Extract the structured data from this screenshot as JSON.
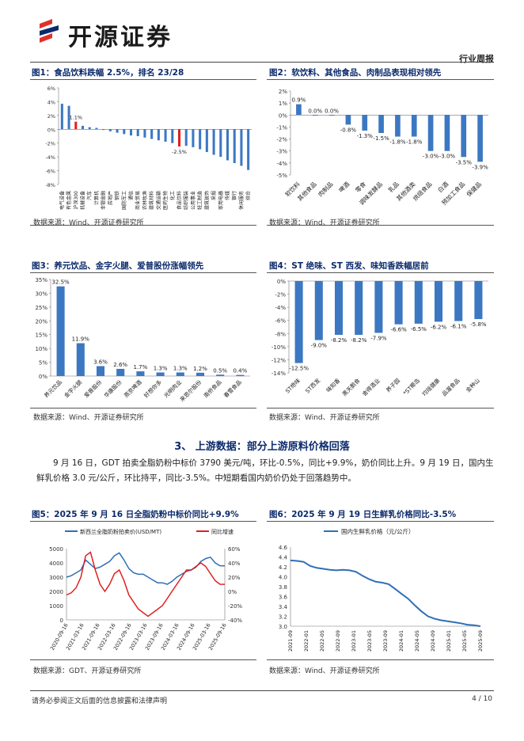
{
  "header": {
    "company": "开源证券",
    "report_type": "行业周报"
  },
  "figures": [
    {
      "title": "图1：食品饮料跌幅 2.5%，排名 23/28",
      "source": "数据来源：Wind、开源证券研究所",
      "chart_data": {
        "type": "bar",
        "categories": [
          "电气设备",
          "有色金属",
          "沪深300",
          "机械设备",
          "汽车",
          "计算机",
          "非银金融",
          "房地产",
          "钢铁",
          "国防军工",
          "通信",
          "商业贸易",
          "农林牧渔",
          "建筑材料",
          "交通运输",
          "医药生物",
          "化工",
          "食品饮料",
          "纺织服装",
          "公用事业",
          "轻工制造",
          "建筑装饰",
          "采掘",
          "家用电器",
          "传媒",
          "银行",
          "休闲服务",
          "综合"
        ],
        "values": [
          3.7,
          3.4,
          1.1,
          0.5,
          0.3,
          0.2,
          -0.1,
          -0.3,
          -0.5,
          -0.7,
          -0.9,
          -1.0,
          -1.2,
          -1.4,
          -1.6,
          -1.8,
          -2.0,
          -2.5,
          -2.4,
          -2.6,
          -2.9,
          -3.3,
          -3.7,
          -4.0,
          -4.5,
          -4.9,
          -5.3,
          -5.9
        ],
        "highlight": {
          "沪深300": "#e02020",
          "食品饮料": "#e02020"
        },
        "data_labels": {
          "沪深300": "1.1%",
          "食品饮料": "-2.5%"
        },
        "ylim": [
          -8,
          6
        ],
        "yticks": [
          "6%",
          "4%",
          "2%",
          "0%",
          "-2%",
          "-4%",
          "-6%",
          "-8%"
        ]
      }
    },
    {
      "title": "图2：软饮料、其他食品、肉制品表现相对领先",
      "source": "数据来源：Wind、开源证券研究所",
      "chart_data": {
        "type": "bar",
        "categories": [
          "软饮料",
          "其他食品",
          "肉制品",
          "啤酒",
          "零食",
          "调味发酵品",
          "乳品",
          "其他酒类",
          "烘焙食品",
          "白酒",
          "预加工食品",
          "保健品"
        ],
        "values": [
          0.9,
          0.0,
          0.0,
          -0.8,
          -1.3,
          -1.5,
          -1.8,
          -1.8,
          -3.0,
          -3.0,
          -3.5,
          -3.9
        ],
        "labels": [
          "0.9%",
          "0.0%",
          "0.0%",
          "-0.8%",
          "-1.3%",
          "-1.5%",
          "-1.8%",
          "-1.8%",
          "-3.0%",
          "-3.0%",
          "-3.5%",
          "-3.9%"
        ],
        "ylim": [
          -5,
          2
        ],
        "yticks": [
          "2%",
          "1%",
          "0%",
          "-1%",
          "-2%",
          "-3%",
          "-4%",
          "-5%"
        ]
      }
    },
    {
      "title": "图3：养元饮品、金字火腿、爱普股份涨幅领先",
      "source": "数据来源：Wind、开源证券研究所",
      "chart_data": {
        "type": "bar",
        "categories": [
          "养元饮品",
          "金字火腿",
          "爱普股份",
          "华康股份",
          "燕京啤酒",
          "好想你多",
          "光明肉业",
          "来思尔股份",
          "南侨食品",
          "春雪食品"
        ],
        "values": [
          32.5,
          11.9,
          3.6,
          2.6,
          1.7,
          1.3,
          1.3,
          1.2,
          0.5,
          0.4
        ],
        "labels": [
          "32.5%",
          "11.9%",
          "3.6%",
          "2.6%",
          "1.7%",
          "1.3%",
          "1.3%",
          "1.2%",
          "0.5%",
          "0.4%"
        ],
        "ylim": [
          0,
          35
        ],
        "yticks": [
          "35%",
          "30%",
          "25%",
          "20%",
          "15%",
          "10%",
          "5%",
          "0%"
        ]
      }
    },
    {
      "title": "图4：ST 绝味、ST 西发、味知香跌幅居前",
      "source": "数据来源：Wind、开源证券研究所",
      "chart_data": {
        "type": "bar",
        "categories": [
          "ST绝味",
          "ST西发",
          "味知香",
          "黑天鹅食",
          "舍得酒业",
          "养子园",
          "*ST椰岛",
          "均瑶健康",
          "品渥食品",
          "金种山"
        ],
        "values": [
          -12.5,
          -9.0,
          -8.2,
          -8.2,
          -7.9,
          -6.6,
          -6.5,
          -6.2,
          -6.1,
          -5.8
        ],
        "labels": [
          "-12.5%",
          "-9.0%",
          "-8.2%",
          "-8.2%",
          "-7.9%",
          "-6.6%",
          "-6.5%",
          "-6.2%",
          "-6.1%",
          "-5.8%"
        ],
        "ylim": [
          -14,
          0
        ],
        "yticks": [
          "0%",
          "-2%",
          "-4%",
          "-6%",
          "-8%",
          "-10%",
          "-12%",
          "-14%"
        ]
      }
    }
  ],
  "section": {
    "title": "3、 上游数据：部分上游原料价格回落",
    "paragraph": "9 月 16 日，GDT 拍卖全脂奶粉中标价 3790 美元/吨，环比-0.5%，同比+9.9%，奶价同比上升。9 月 19 日，国内生鲜乳价格 3.0 元/公斤，环比持平，同比-3.5%。中短期看国内奶价仍处于回落趋势中。"
  },
  "figures_bottom": [
    {
      "title": "图5：2025 年 9 月 16 日全脂奶粉中标价同比+9.9%",
      "source": "数据来源：GDT、开源证券研究所",
      "chart_data": {
        "type": "line",
        "series": [
          {
            "name": "新西兰全脂奶粉拍卖价(USD/MT)",
            "color": "#2f6fb5",
            "axis": "left"
          },
          {
            "name": "同比增速",
            "color": "#e02020",
            "axis": "right"
          }
        ],
        "xticks": [
          "2020-09-16",
          "2021-03-16",
          "2021-09-16",
          "2022-03-16",
          "2022-09-16",
          "2023-03-16",
          "2023-09-16",
          "2024-03-16",
          "2024-09-16",
          "2025-03-16",
          "2025-09-16"
        ],
        "left_yticks": [
          "5000",
          "4000",
          "3000",
          "2000",
          "1000",
          "0"
        ],
        "right_yticks": [
          "60%",
          "40%",
          "20%",
          "0%",
          "-20%",
          "-40%"
        ],
        "left_ylim": [
          0,
          5000
        ],
        "right_ylim": [
          -40,
          60
        ],
        "price": [
          3000,
          3100,
          3300,
          3500,
          4200,
          3900,
          3600,
          3700,
          3900,
          4100,
          4500,
          4700,
          4200,
          3600,
          3300,
          3200,
          3200,
          3000,
          2800,
          2600,
          2600,
          2500,
          2700,
          3000,
          3200,
          3400,
          3500,
          3700,
          4100,
          4300,
          4400,
          4000,
          3800,
          3790
        ],
        "yoy": [
          -5,
          -2,
          5,
          20,
          50,
          55,
          30,
          10,
          0,
          10,
          25,
          30,
          15,
          -5,
          -15,
          -25,
          -30,
          -35,
          -30,
          -25,
          -20,
          -10,
          0,
          10,
          20,
          30,
          30,
          35,
          40,
          35,
          25,
          15,
          10,
          9.9
        ]
      }
    },
    {
      "title": "图6：2025 年 9 月 19 日生鲜乳价格同比-3.5%",
      "source": "数据来源：Wind、开源证券研究所",
      "chart_data": {
        "type": "line",
        "series": [
          {
            "name": "国内生鲜乳价格（元/公斤）",
            "color": "#2f6fb5"
          }
        ],
        "xticks": [
          "2021-09",
          "2022-01",
          "2022-05",
          "2022-09",
          "2023-01",
          "2023-05",
          "2023-09",
          "2024-01",
          "2024-05",
          "2024-09",
          "2025-01",
          "2025-05",
          "2025-09"
        ],
        "yticks": [
          "4.6",
          "4.4",
          "4.2",
          "4.0",
          "3.8",
          "3.6",
          "3.4",
          "3.2",
          "3.0"
        ],
        "ylim": [
          3.0,
          4.6
        ],
        "values": [
          4.33,
          4.32,
          4.3,
          4.22,
          4.18,
          4.16,
          4.14,
          4.13,
          4.14,
          4.13,
          4.1,
          4.02,
          3.95,
          3.9,
          3.88,
          3.85,
          3.75,
          3.65,
          3.55,
          3.42,
          3.3,
          3.2,
          3.15,
          3.12,
          3.1,
          3.08,
          3.06,
          3.03,
          3.02,
          3.0
        ]
      }
    }
  ],
  "footer": {
    "disclaimer": "请务必参阅正文后面的信息披露和法律声明",
    "page": "4 / 10"
  }
}
